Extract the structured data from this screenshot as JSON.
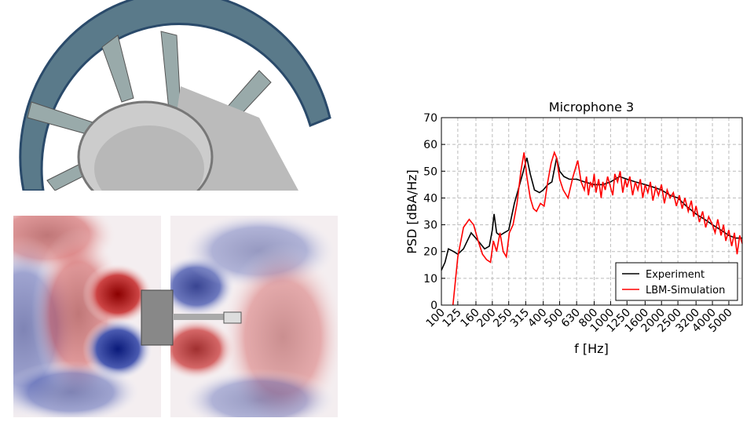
{
  "chart_data": {
    "type": "line",
    "title": "Microphone 3",
    "xlabel": "f [Hz]",
    "ylabel": "PSD [dBA/Hz]",
    "xscale": "log",
    "xlim": [
      100,
      6000
    ],
    "xticks": [
      100,
      125,
      160,
      200,
      250,
      315,
      400,
      500,
      630,
      800,
      1000,
      1250,
      1600,
      2000,
      2500,
      3200,
      4000,
      5000
    ],
    "ylim": [
      0,
      70
    ],
    "yticks": [
      0,
      10,
      20,
      30,
      40,
      50,
      60,
      70
    ],
    "grid": true,
    "legend": "lower right",
    "series": [
      {
        "name": "Experiment",
        "color": "#000000",
        "x": [
          100,
          105,
          110,
          118,
          125,
          135,
          150,
          165,
          180,
          192,
          200,
          205,
          212,
          222,
          235,
          250,
          270,
          290,
          305,
          320,
          335,
          355,
          380,
          400,
          425,
          450,
          480,
          500,
          530,
          570,
          630,
          700,
          800,
          900,
          1000,
          1130,
          1250,
          1400,
          1600,
          1800,
          2000,
          2250,
          2500,
          2800,
          3200,
          3600,
          4000,
          4500,
          5000,
          5500,
          6000
        ],
        "values": [
          13,
          16,
          21,
          20,
          19,
          21,
          27,
          24,
          21,
          22,
          28,
          34,
          27,
          26,
          27,
          28,
          38,
          45,
          50,
          55,
          49,
          43,
          42,
          43,
          45,
          46,
          55,
          50,
          48,
          47,
          47,
          46,
          45,
          45,
          46,
          48,
          47,
          46,
          45,
          44,
          43,
          41,
          40,
          37,
          34,
          32,
          30,
          28,
          26,
          25,
          25
        ]
      },
      {
        "name": "LBM-Simulation",
        "color": "#ff0000",
        "x": [
          117,
          125,
          135,
          146,
          155,
          165,
          175,
          185,
          195,
          203,
          212,
          222,
          232,
          242,
          252,
          265,
          280,
          295,
          308,
          320,
          335,
          350,
          365,
          385,
          405,
          425,
          445,
          465,
          480,
          500,
          525,
          560,
          600,
          640,
          670,
          700,
          720,
          740,
          760,
          780,
          800,
          820,
          850,
          880,
          900,
          930,
          960,
          1000,
          1030,
          1060,
          1100,
          1140,
          1180,
          1220,
          1250,
          1300,
          1350,
          1400,
          1450,
          1500,
          1550,
          1600,
          1660,
          1720,
          1780,
          1850,
          1920,
          2000,
          2080,
          2160,
          2250,
          2350,
          2450,
          2550,
          2650,
          2750,
          2880,
          3000,
          3100,
          3200,
          3350,
          3500,
          3650,
          3800,
          4000,
          4150,
          4300,
          4500,
          4650,
          4800,
          5000,
          5200,
          5400,
          5600,
          5800,
          6000
        ],
        "values": [
          0,
          18,
          29,
          32,
          30,
          24,
          19,
          17,
          16,
          24,
          20,
          27,
          20,
          18,
          27,
          30,
          38,
          50,
          57,
          48,
          40,
          36,
          35,
          38,
          37,
          46,
          53,
          57,
          55,
          47,
          43,
          40,
          48,
          54,
          46,
          43,
          48,
          41,
          46,
          44,
          49,
          42,
          47,
          40,
          46,
          43,
          48,
          44,
          41,
          49,
          46,
          50,
          42,
          47,
          44,
          48,
          41,
          46,
          43,
          47,
          40,
          45,
          42,
          46,
          39,
          44,
          41,
          45,
          38,
          43,
          40,
          42,
          37,
          41,
          36,
          40,
          35,
          39,
          33,
          37,
          31,
          35,
          29,
          33,
          30,
          27,
          32,
          26,
          30,
          24,
          28,
          22,
          27,
          19,
          26,
          23
        ]
      }
    ]
  }
}
